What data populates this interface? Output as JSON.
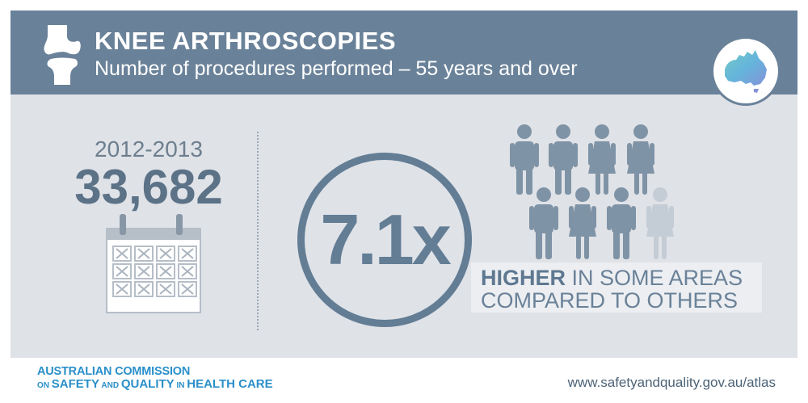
{
  "header": {
    "title": "KNEE ARTHROSCOPIES",
    "subtitle": "Number of procedures performed – 55 years and over",
    "knee_icon": "knee-joint-icon",
    "map_icon": "australia-map-icon"
  },
  "stats": {
    "year": "2012-2013",
    "count": "33,682",
    "calendar_icon": "calendar-icon",
    "ratio": "7.1x",
    "caption_highlight": "HIGHER",
    "caption_line1_rest": " IN SOME AREAS",
    "caption_line2": "COMPARED TO OTHERS",
    "people_icon": "people-group-icon"
  },
  "footer": {
    "org_line1": "AUSTRALIAN COMMISSION",
    "org_line2_on": "ON ",
    "org_line2_safety": "SAFETY",
    "org_line2_and": " AND ",
    "org_line2_quality": "QUALITY",
    "org_line2_in": " IN ",
    "org_line2_health": "HEALTH CARE",
    "url": "www.safetyandquality.gov.au/atlas"
  },
  "colors": {
    "header": "#6a8299",
    "panel": "#dfe2e7",
    "accent": "#637d95",
    "org_blue": "#2a8fc9"
  }
}
